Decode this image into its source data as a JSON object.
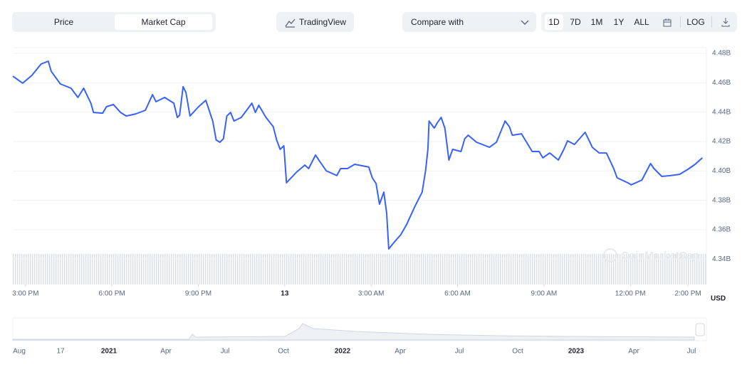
{
  "toolbar": {
    "tabs": [
      "Price",
      "Market Cap"
    ],
    "tradingview": "TradingView",
    "compare": "Compare with",
    "ranges": [
      "1D",
      "7D",
      "1M",
      "1Y",
      "ALL"
    ],
    "log": "LOG"
  },
  "chart_data": {
    "type": "line",
    "y_label": "USD",
    "watermark": "CoinMarketCap",
    "grid": true,
    "series": [
      {
        "color": "#3861fb",
        "values": [
          4.4645,
          4.4621,
          4.4597,
          4.465,
          4.4727,
          4.4747,
          4.4679,
          4.4592,
          4.4563,
          4.45,
          4.4563,
          4.4461,
          4.4398,
          4.4393,
          4.4437,
          4.4452,
          4.4398,
          4.4374,
          4.4389,
          4.4413,
          4.4519,
          4.4471,
          4.45,
          4.4461,
          4.4364,
          4.4379,
          4.4573,
          4.4534,
          4.4374,
          4.4437,
          4.4481,
          4.434,
          4.421,
          4.4195,
          4.4219,
          4.4374,
          4.4398,
          4.434,
          4.4364,
          4.4427,
          4.4461,
          4.4398,
          4.4447,
          4.4364,
          4.4301,
          4.421,
          4.4147,
          4.4171,
          4.3919,
          4.3992,
          4.404,
          4.4016,
          4.4108,
          4.4069,
          4.4001,
          4.3968,
          4.4016,
          4.4016,
          4.4045,
          4.4026,
          4.3953,
          4.3914,
          4.3774,
          4.3856,
          4.3711,
          4.3469,
          4.3517,
          4.3566,
          4.3634,
          4.3759,
          4.3856,
          4.4001,
          4.4147,
          4.434,
          4.4292,
          4.4331,
          4.4364,
          4.4292,
          4.4074,
          4.4147,
          4.4132,
          4.4219,
          4.4243,
          4.4195,
          4.4161,
          4.4195,
          4.434,
          4.4301,
          4.4243,
          4.4253,
          4.4132,
          4.4132,
          4.4089,
          4.4122,
          4.4074,
          4.4147,
          4.4205,
          4.418,
          4.4263,
          4.4161,
          4.4122,
          4.4122,
          4.4016,
          4.3953,
          4.3919,
          4.3905,
          4.3938,
          4.405,
          4.4016,
          4.3963,
          4.3968,
          4.3977,
          4.4011,
          4.4045,
          4.4089
        ]
      }
    ],
    "x": [
      14.56,
      14.73,
      14.9,
      15.22,
      15.54,
      15.79,
      15.89,
      16.21,
      16.58,
      16.82,
      17.02,
      17.27,
      17.36,
      17.68,
      17.81,
      18.05,
      18.3,
      18.5,
      18.84,
      19.16,
      19.41,
      19.53,
      19.83,
      20.15,
      20.27,
      20.35,
      20.47,
      20.57,
      20.71,
      21.01,
      21.26,
      21.5,
      21.62,
      21.75,
      21.87,
      21.99,
      22.12,
      22.24,
      22.49,
      22.73,
      22.86,
      22.98,
      23.1,
      23.35,
      23.6,
      23.72,
      23.84,
      23.97,
      24.06,
      24.41,
      24.7,
      24.83,
      25.07,
      25.2,
      25.44,
      25.81,
      25.94,
      26.18,
      26.43,
      26.92,
      27.04,
      27.17,
      27.29,
      27.44,
      27.54,
      27.61,
      27.81,
      28.03,
      28.23,
      28.52,
      28.77,
      28.89,
      28.97,
      29.01,
      29.19,
      29.31,
      29.43,
      29.56,
      29.7,
      29.83,
      30.12,
      30.25,
      30.37,
      30.66,
      31.11,
      31.35,
      31.65,
      31.8,
      31.9,
      32.22,
      32.59,
      32.83,
      32.96,
      33.2,
      33.5,
      33.69,
      33.82,
      34.06,
      34.43,
      34.68,
      34.92,
      35.17,
      35.42,
      35.54,
      35.91,
      36.03,
      36.4,
      36.7,
      36.82,
      37.09,
      37.39,
      37.71,
      38.0,
      38.25,
      38.5
    ],
    "xlim": [
      14.56,
      38.64
    ],
    "ylim": [
      4.3227,
      4.4839
    ],
    "xticks": [
      {
        "value": 15,
        "label": "3:00 PM"
      },
      {
        "value": 18,
        "label": "6:00 PM"
      },
      {
        "value": 21,
        "label": "9:00 PM"
      },
      {
        "value": 24,
        "label": "13"
      },
      {
        "value": 27,
        "label": "3:00 AM"
      },
      {
        "value": 30,
        "label": "6:00 AM"
      },
      {
        "value": 33,
        "label": "9:00 AM"
      },
      {
        "value": 36,
        "label": "12:00 PM"
      },
      {
        "value": 38,
        "label": "2:00 PM"
      }
    ],
    "yticks": [
      {
        "value": 4.48,
        "label": "4.48B"
      },
      {
        "value": 4.46,
        "label": "4.46B"
      },
      {
        "value": 4.44,
        "label": "4.44B"
      },
      {
        "value": 4.42,
        "label": "4.42B"
      },
      {
        "value": 4.4,
        "label": "4.40B"
      },
      {
        "value": 4.38,
        "label": "4.38B"
      },
      {
        "value": 4.36,
        "label": "4.36B"
      },
      {
        "value": 4.34,
        "label": "4.34B"
      }
    ]
  },
  "navigator": {
    "labels": [
      "Aug",
      "17",
      "2021",
      "Apr",
      "Jul",
      "Oct",
      "2022",
      "Apr",
      "Jul",
      "Oct",
      "2023",
      "Apr",
      "Jul"
    ]
  }
}
